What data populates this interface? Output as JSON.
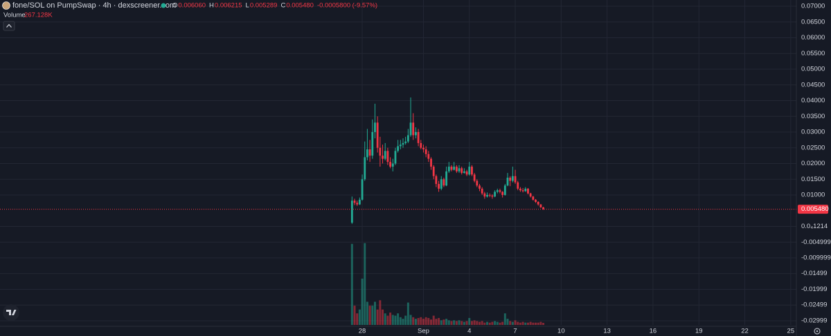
{
  "chart_data": {
    "type": "candlestick",
    "title": "fone/SOL on PumpSwap · 4h · dexscreener.com",
    "ohlc_labels": [
      {
        "name": "O",
        "label": "0.006060"
      },
      {
        "name": "H",
        "label": "0.006215"
      },
      {
        "name": "L",
        "label": "0.005289"
      },
      {
        "name": "C",
        "label": "0.005480"
      }
    ],
    "change_label": "-0.0005800 (-9.57%)",
    "last_price": {
      "value": 0.00548,
      "label": "0.005480"
    },
    "up_color": "#22ab94",
    "down_color": "#f23645",
    "grid": true,
    "xlim": [
      -23.67,
      28.37
    ],
    "xticks": [
      {
        "value": 0,
        "label": "28"
      },
      {
        "value": 4,
        "label": "Sep"
      },
      {
        "value": 7,
        "label": "4"
      },
      {
        "value": 10,
        "label": "7"
      },
      {
        "value": 13,
        "label": "10"
      },
      {
        "value": 16,
        "label": "13"
      },
      {
        "value": 19,
        "label": "16"
      },
      {
        "value": 22,
        "label": "19"
      },
      {
        "value": 25,
        "label": "22"
      },
      {
        "value": 28,
        "label": "25"
      }
    ],
    "ylim": [
      -0.03132,
      0.07198
    ],
    "yticks": [
      {
        "value": 0.07,
        "label": "0.07000"
      },
      {
        "value": 0.065,
        "label": "0.06500"
      },
      {
        "value": 0.06,
        "label": "0.06000"
      },
      {
        "value": 0.055,
        "label": "0.05500"
      },
      {
        "value": 0.05,
        "label": "0.05000"
      },
      {
        "value": 0.045,
        "label": "0.04500"
      },
      {
        "value": 0.04,
        "label": "0.04000"
      },
      {
        "value": 0.035,
        "label": "0.03500"
      },
      {
        "value": 0.03,
        "label": "0.03000"
      },
      {
        "value": 0.025,
        "label": "0.02500"
      },
      {
        "value": 0.02,
        "label": "0.02000"
      },
      {
        "value": 0.015,
        "label": "0.01500"
      },
      {
        "value": 0.01,
        "label": "0.01000"
      },
      {
        "value": 1.214e-05,
        "label": "0.0₄1214"
      },
      -0.004999,
      -0.009999,
      -0.01499,
      -0.01999,
      -0.02499,
      -0.02999
    ],
    "x": [
      -0.667,
      -0.5,
      -0.333,
      -0.167,
      0,
      0.167,
      0.333,
      0.5,
      0.667,
      0.833,
      1,
      1.167,
      1.333,
      1.5,
      1.667,
      1.833,
      2,
      2.167,
      2.333,
      2.5,
      2.667,
      2.833,
      3,
      3.167,
      3.333,
      3.5,
      3.667,
      3.833,
      4,
      4.167,
      4.333,
      4.5,
      4.667,
      4.833,
      5,
      5.167,
      5.333,
      5.5,
      5.667,
      5.833,
      6,
      6.167,
      6.333,
      6.5,
      6.667,
      6.833,
      7,
      7.167,
      7.333,
      7.5,
      7.667,
      7.833,
      8,
      8.167,
      8.333,
      8.5,
      8.667,
      8.833,
      9,
      9.167,
      9.333,
      9.5,
      9.667,
      9.833,
      10,
      10.167,
      10.333,
      10.5,
      10.667,
      10.833,
      11,
      11.167,
      11.333,
      11.5,
      11.667,
      11.833
    ],
    "open": [
      0.0012,
      0.0082,
      0.0075,
      0.007,
      0.0085,
      0.015,
      0.022,
      0.0245,
      0.0225,
      0.03,
      0.033,
      0.025,
      0.0225,
      0.0215,
      0.024,
      0.0205,
      0.019,
      0.02,
      0.024,
      0.0255,
      0.026,
      0.0265,
      0.027,
      0.029,
      0.033,
      0.029,
      0.03,
      0.0265,
      0.025,
      0.0245,
      0.023,
      0.0215,
      0.019,
      0.016,
      0.0135,
      0.012,
      0.015,
      0.013,
      0.0175,
      0.019,
      0.018,
      0.019,
      0.0175,
      0.0185,
      0.017,
      0.0175,
      0.0165,
      0.019,
      0.0165,
      0.0145,
      0.013,
      0.012,
      0.0105,
      0.0095,
      0.01,
      0.0098,
      0.0095,
      0.011,
      0.0115,
      0.011,
      0.01,
      0.013,
      0.0155,
      0.0145,
      0.016,
      0.014,
      0.012,
      0.0115,
      0.0112,
      0.012,
      0.0105,
      0.0095,
      0.0085,
      0.0078,
      0.007,
      0.00606
    ],
    "high": [
      0.0095,
      0.0088,
      0.0082,
      0.0092,
      0.0165,
      0.027,
      0.031,
      0.0275,
      0.034,
      0.039,
      0.035,
      0.0285,
      0.026,
      0.0265,
      0.025,
      0.022,
      0.0215,
      0.025,
      0.0275,
      0.0275,
      0.028,
      0.0285,
      0.031,
      0.041,
      0.036,
      0.0315,
      0.031,
      0.0275,
      0.026,
      0.0255,
      0.024,
      0.022,
      0.0195,
      0.0165,
      0.0145,
      0.016,
      0.0155,
      0.019,
      0.0205,
      0.0195,
      0.0205,
      0.0195,
      0.0195,
      0.019,
      0.0185,
      0.018,
      0.0205,
      0.0195,
      0.017,
      0.015,
      0.0135,
      0.0125,
      0.011,
      0.0108,
      0.0105,
      0.0102,
      0.0115,
      0.012,
      0.012,
      0.0112,
      0.0135,
      0.017,
      0.016,
      0.019,
      0.018,
      0.0145,
      0.0125,
      0.0122,
      0.0125,
      0.0122,
      0.0107,
      0.0097,
      0.0087,
      0.008,
      0.0071,
      0.006215
    ],
    "low": [
      0.0008,
      0.0068,
      0.0065,
      0.0068,
      0.0082,
      0.0145,
      0.021,
      0.0205,
      0.0215,
      0.028,
      0.0235,
      0.019,
      0.02,
      0.021,
      0.0195,
      0.0185,
      0.0175,
      0.0195,
      0.0235,
      0.0245,
      0.025,
      0.026,
      0.0265,
      0.0285,
      0.0275,
      0.028,
      0.0255,
      0.0245,
      0.0235,
      0.022,
      0.0205,
      0.018,
      0.015,
      0.0125,
      0.011,
      0.0115,
      0.0125,
      0.0128,
      0.017,
      0.0175,
      0.0178,
      0.017,
      0.017,
      0.0165,
      0.0168,
      0.016,
      0.0162,
      0.016,
      0.014,
      0.0125,
      0.0112,
      0.01,
      0.0088,
      0.0092,
      0.0093,
      0.0088,
      0.0093,
      0.0105,
      0.0105,
      0.0092,
      0.0098,
      0.0128,
      0.0128,
      0.014,
      0.0135,
      0.0115,
      0.011,
      0.0108,
      0.011,
      0.0102,
      0.0092,
      0.0082,
      0.0075,
      0.0066,
      0.0059,
      0.005289
    ],
    "close": [
      0.0082,
      0.0075,
      0.007,
      0.0085,
      0.015,
      0.022,
      0.0245,
      0.0225,
      0.03,
      0.033,
      0.025,
      0.0225,
      0.0215,
      0.024,
      0.0205,
      0.019,
      0.02,
      0.024,
      0.0255,
      0.026,
      0.0265,
      0.027,
      0.029,
      0.033,
      0.029,
      0.03,
      0.0265,
      0.025,
      0.0245,
      0.023,
      0.0215,
      0.019,
      0.016,
      0.0135,
      0.012,
      0.015,
      0.013,
      0.0175,
      0.019,
      0.018,
      0.019,
      0.0175,
      0.0185,
      0.017,
      0.0175,
      0.0165,
      0.019,
      0.0165,
      0.0145,
      0.013,
      0.012,
      0.0105,
      0.0095,
      0.01,
      0.0098,
      0.0095,
      0.011,
      0.0115,
      0.011,
      0.01,
      0.013,
      0.0155,
      0.0145,
      0.016,
      0.014,
      0.012,
      0.0115,
      0.0112,
      0.012,
      0.0105,
      0.0095,
      0.0085,
      0.0078,
      0.007,
      0.00606,
      0.00548
    ],
    "volume": {
      "name": "Volume",
      "last_label": "267.128K",
      "ylim": [
        0,
        12000000
      ],
      "opacity": 0.5,
      "values": [
        10500000,
        2500000,
        1500000,
        2000000,
        6000000,
        10600000,
        3000000,
        2500000,
        2500000,
        3000000,
        2000000,
        3200000,
        2000000,
        1500000,
        1200000,
        1600000,
        1300000,
        1200000,
        1500000,
        1000000,
        800000,
        1200000,
        2900000,
        1300000,
        1000000,
        800000,
        900000,
        1000000,
        800000,
        1000000,
        900000,
        700000,
        1200000,
        800000,
        900000,
        600000,
        700000,
        800000,
        600000,
        500000,
        600000,
        500000,
        600000,
        500000,
        400000,
        500000,
        900000,
        500000,
        600000,
        500000,
        400000,
        500000,
        300000,
        400000,
        300000,
        400000,
        500000,
        400000,
        300000,
        400000,
        1500000,
        800000,
        500000,
        400000,
        600000,
        400000,
        300000,
        400000,
        300000,
        300000,
        400000,
        300000,
        300000,
        300000,
        400000,
        267128
      ]
    }
  }
}
